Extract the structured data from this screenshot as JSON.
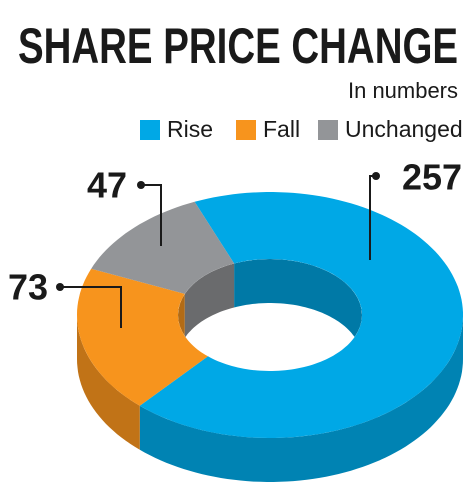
{
  "chart_data": {
    "type": "pie",
    "donut": true,
    "three_d": true,
    "title": "SHARE PRICE CHANGE",
    "subtitle": "In numbers",
    "categories": [
      "Rise",
      "Fall",
      "Unchanged"
    ],
    "values": [
      257,
      73,
      47
    ],
    "colors": [
      "#00a8e6",
      "#f7941d",
      "#939598"
    ]
  }
}
